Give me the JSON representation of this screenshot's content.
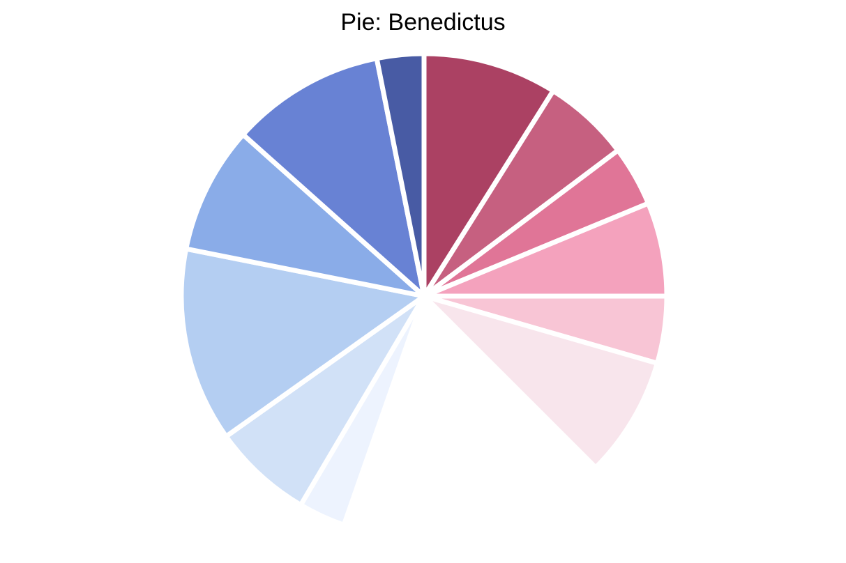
{
  "chart_data": {
    "type": "pie",
    "title": "Pie: Benedictus",
    "start_angle": 0,
    "direction": "clockwise",
    "slices": [
      {
        "value": 10.0,
        "color": "#ab4163"
      },
      {
        "value": 6.5,
        "color": "#c66080"
      },
      {
        "value": 4.5,
        "color": "#e07597"
      },
      {
        "value": 7.0,
        "color": "#f4a2bd"
      },
      {
        "value": 5.0,
        "color": "#f8c5d5"
      },
      {
        "value": 9.0,
        "color": "#f8e5ec"
      },
      {
        "value": 20.0,
        "color": "#ffffff"
      },
      {
        "value": 3.5,
        "color": "#edf3fe"
      },
      {
        "value": 7.5,
        "color": "#d1e1f7"
      },
      {
        "value": 14.5,
        "color": "#b4cef2"
      },
      {
        "value": 9.5,
        "color": "#8aace8"
      },
      {
        "value": 11.5,
        "color": "#6882d4"
      },
      {
        "value": 3.5,
        "color": "#485ba4"
      }
    ]
  }
}
